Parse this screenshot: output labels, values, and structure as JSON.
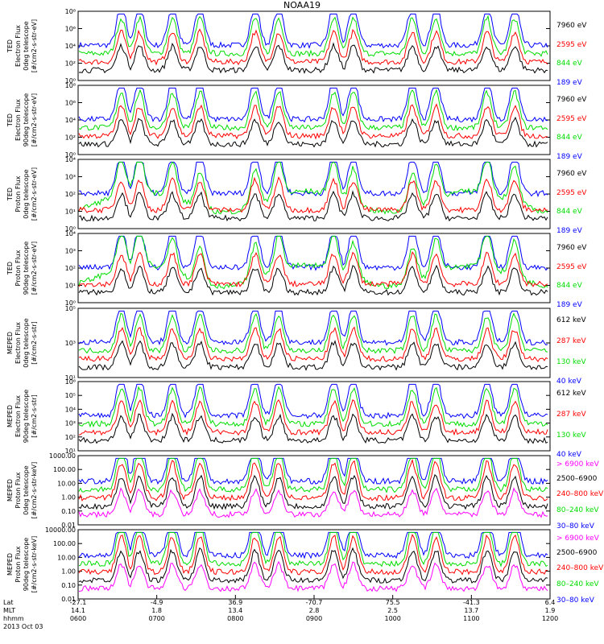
{
  "title": "NOAA19",
  "colors": {
    "blue": "#0000ff",
    "red": "#ff0000",
    "green": "#00dd00",
    "black": "#000000",
    "magenta": "#ff00ff"
  },
  "chart_data": [
    {
      "type": "line",
      "ylabel": [
        "TED",
        "Electron Flux",
        "0deg telescope",
        "[#/cm2-s-str-eV]"
      ],
      "ytick_labels": [
        "10⁰",
        "10²",
        "10⁴",
        "10⁶",
        "10⁸"
      ],
      "ylog": [
        0,
        8
      ],
      "series": [
        {
          "name": "7960 eV",
          "color": "#000000"
        },
        {
          "name": "2595 eV",
          "color": "#ff0000"
        },
        {
          "name": "844 eV",
          "color": "#00dd00"
        },
        {
          "name": "189 eV",
          "color": "#0000ff"
        }
      ]
    },
    {
      "type": "line",
      "ylabel": [
        "TED",
        "Electron Flux",
        "90deg telescope",
        "[#/cm2-s-str-eV]"
      ],
      "ytick_labels": [
        "10⁰",
        "10²",
        "10⁴",
        "10⁶",
        "10⁸"
      ],
      "ylog": [
        0,
        8
      ],
      "series": [
        {
          "name": "7960 eV",
          "color": "#000000"
        },
        {
          "name": "2595 eV",
          "color": "#ff0000"
        },
        {
          "name": "844 eV",
          "color": "#00dd00"
        },
        {
          "name": "189 eV",
          "color": "#0000ff"
        }
      ]
    },
    {
      "type": "line",
      "ylabel": [
        "TED",
        "Proton Flux",
        "0deg telescope",
        "[#/cm2-s-str-eV]"
      ],
      "ytick_labels": [
        "10⁰",
        "10¹",
        "10²",
        "10³",
        "10⁴"
      ],
      "ylog": [
        0,
        4
      ],
      "series": [
        {
          "name": "7960 eV",
          "color": "#000000"
        },
        {
          "name": "2595 eV",
          "color": "#ff0000"
        },
        {
          "name": "844 eV",
          "color": "#00dd00"
        },
        {
          "name": "189 eV",
          "color": "#0000ff"
        }
      ]
    },
    {
      "type": "line",
      "ylabel": [
        "TED",
        "Proton Flux",
        "90deg telescope",
        "[#/cm2-s-str-eV]"
      ],
      "ytick_labels": [
        "10⁰",
        "10¹",
        "10²",
        "10³",
        "10⁴"
      ],
      "ylog": [
        0,
        4
      ],
      "series": [
        {
          "name": "7960 eV",
          "color": "#000000"
        },
        {
          "name": "2595 eV",
          "color": "#ff0000"
        },
        {
          "name": "844 eV",
          "color": "#00dd00"
        },
        {
          "name": "189 eV",
          "color": "#0000ff"
        }
      ]
    },
    {
      "type": "line",
      "ylabel": [
        "MEPED",
        "Electron Flux",
        "0deg telescope",
        "[#/cm2-s-str]"
      ],
      "ytick_labels": [
        "10¹",
        "10³",
        "10⁵"
      ],
      "ylog": [
        1,
        6
      ],
      "series": [
        {
          "name": "612 keV",
          "color": "#000000"
        },
        {
          "name": "287 keV",
          "color": "#ff0000"
        },
        {
          "name": "130 keV",
          "color": "#00dd00"
        },
        {
          "name": "40 keV",
          "color": "#0000ff"
        }
      ]
    },
    {
      "type": "line",
      "ylabel": [
        "MEPED",
        "Electron Flux",
        "90deg telescope",
        "[#/cm2-s-str]"
      ],
      "ytick_labels": [
        "10¹",
        "10²",
        "10³",
        "10⁴",
        "10⁵",
        "10⁶"
      ],
      "ylog": [
        1,
        6
      ],
      "series": [
        {
          "name": "612 keV",
          "color": "#000000"
        },
        {
          "name": "287 keV",
          "color": "#ff0000"
        },
        {
          "name": "130 keV",
          "color": "#00dd00"
        },
        {
          "name": "40 keV",
          "color": "#0000ff"
        }
      ]
    },
    {
      "type": "line",
      "ylabel": [
        "MEPED",
        "Proton Flux",
        "0deg telescope",
        "[#/cm2-s-str-keV]"
      ],
      "ytick_labels": [
        "0.01",
        "0.10",
        "1.00",
        "10.00",
        "100.00",
        "1000.00"
      ],
      "ylog": [
        -2,
        3
      ],
      "series": [
        {
          "name": "> 6900 keV",
          "color": "#ff00ff"
        },
        {
          "name": "2500–6900",
          "color": "#000000"
        },
        {
          "name": "240–800 keV",
          "color": "#ff0000"
        },
        {
          "name": "80–240 keV",
          "color": "#00dd00"
        },
        {
          "name": "30–80 keV",
          "color": "#0000ff"
        }
      ]
    },
    {
      "type": "line",
      "ylabel": [
        "MEPED",
        "Proton Flux",
        "90deg telescope",
        "[#/cm2-s-str-keV]"
      ],
      "ytick_labels": [
        "0.01",
        "0.10",
        "1.00",
        "10.00",
        "100.00",
        "10000.00"
      ],
      "ylog": [
        -2,
        4
      ],
      "series": [
        {
          "name": "> 6900 keV",
          "color": "#ff00ff"
        },
        {
          "name": "2500–6900",
          "color": "#000000"
        },
        {
          "name": "240–800 keV",
          "color": "#ff0000"
        },
        {
          "name": "80–240 keV",
          "color": "#00dd00"
        },
        {
          "name": "30–80 keV",
          "color": "#0000ff"
        }
      ]
    }
  ],
  "xaxis": {
    "rows": [
      {
        "label": "Lat",
        "values": [
          "-27.1",
          "-4.9",
          "36.9",
          "-70.7",
          "75.5",
          "-41.3",
          "6.4"
        ]
      },
      {
        "label": "MLT",
        "values": [
          "14.1",
          "1.8",
          "13.4",
          "2.8",
          "2.5",
          "13.7",
          "1.9"
        ]
      },
      {
        "label": "hhmm",
        "values": [
          "0600",
          "0700",
          "0800",
          "0900",
          "1000",
          "1100",
          "1200"
        ]
      }
    ],
    "date": "2013 Oct 03",
    "time_range_hours": [
      6,
      12
    ],
    "pass_peaks_hours": [
      6.55,
      6.78,
      7.2,
      7.55,
      8.25,
      8.55,
      9.25,
      9.5,
      10.25,
      10.55,
      11.2,
      11.55
    ]
  }
}
